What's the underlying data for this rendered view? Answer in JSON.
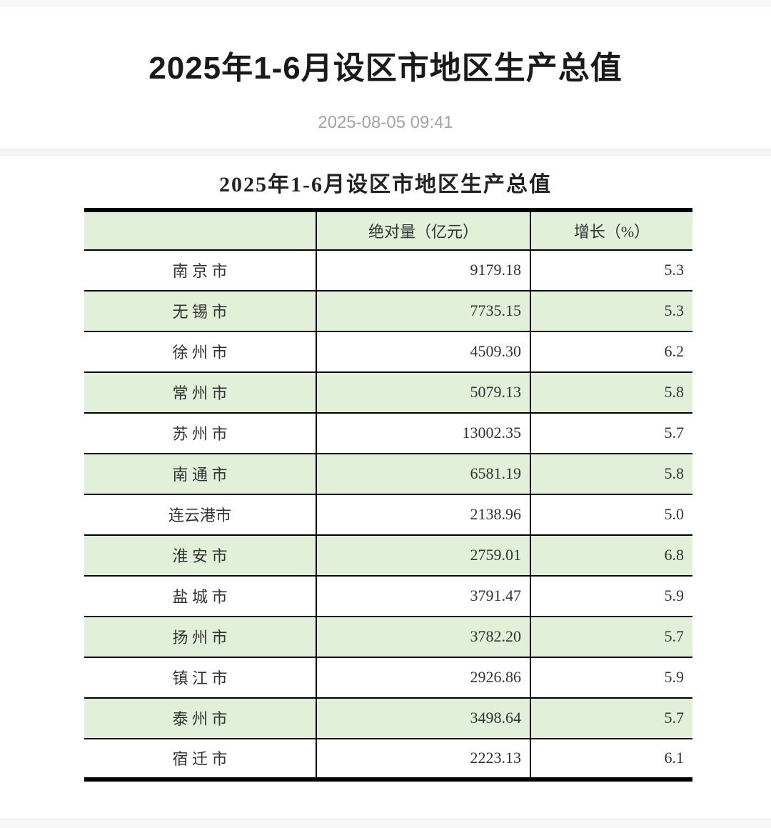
{
  "page": {
    "title": "2025年1-6月设区市地区生产总值",
    "publish_date": "2025-08-05 09:41"
  },
  "article": {
    "table_title": "2025年1-6月设区市地区生产总值"
  },
  "table": {
    "columns": [
      {
        "key": "city",
        "label": ""
      },
      {
        "key": "value",
        "label": "绝对量（亿元）"
      },
      {
        "key": "growth",
        "label": "增长（%）"
      }
    ],
    "rows": [
      {
        "city": "南 京 市",
        "value": "9179.18",
        "growth": "5.3"
      },
      {
        "city": "无 锡 市",
        "value": "7735.15",
        "growth": "5.3"
      },
      {
        "city": "徐 州 市",
        "value": "4509.30",
        "growth": "6.2"
      },
      {
        "city": "常 州 市",
        "value": "5079.13",
        "growth": "5.8"
      },
      {
        "city": "苏 州 市",
        "value": "13002.35",
        "growth": "5.7"
      },
      {
        "city": "南 通 市",
        "value": "6581.19",
        "growth": "5.8"
      },
      {
        "city": "连云港市",
        "value": "2138.96",
        "growth": "5.0"
      },
      {
        "city": "淮 安 市",
        "value": "2759.01",
        "growth": "6.8"
      },
      {
        "city": "盐 城 市",
        "value": "3791.47",
        "growth": "5.9"
      },
      {
        "city": "扬 州 市",
        "value": "3782.20",
        "growth": "5.7"
      },
      {
        "city": "镇 江 市",
        "value": "2926.86",
        "growth": "5.9"
      },
      {
        "city": "泰 州 市",
        "value": "3498.64",
        "growth": "5.7"
      },
      {
        "city": "宿 迁 市",
        "value": "2223.13",
        "growth": "6.1"
      }
    ]
  },
  "colors": {
    "row_stripe_green": "#e2efd9",
    "table_border": "#000000",
    "title_text": "#1a1a1a",
    "date_text": "#a3a3a3"
  }
}
